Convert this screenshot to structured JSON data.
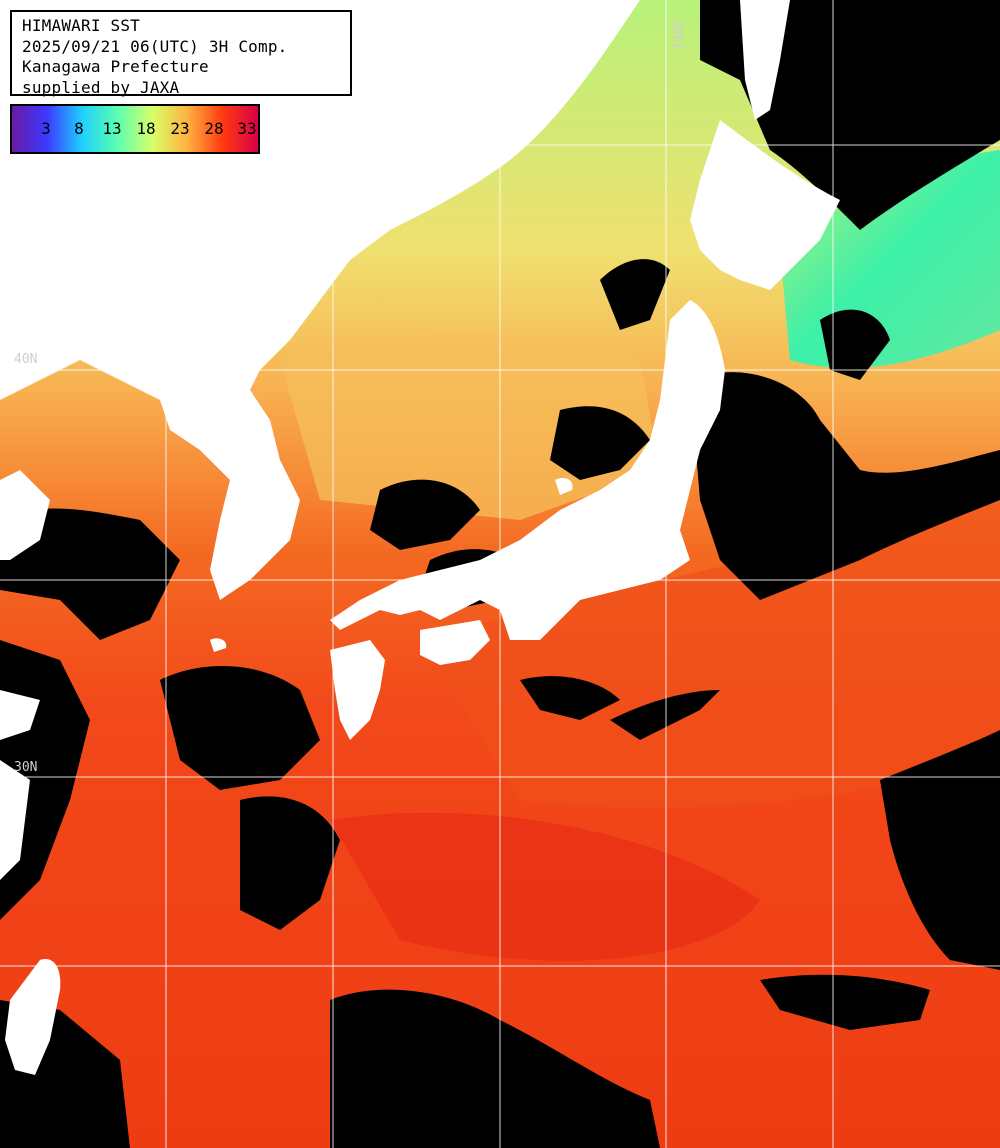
{
  "title_box": {
    "line1": "HIMAWARI SST",
    "line2": "2025/09/21 06(UTC) 3H Comp.",
    "line3": "Kanagawa Prefecture",
    "line4": "supplied by JAXA"
  },
  "colorbar": {
    "ticks": [
      "3",
      "8",
      "13",
      "18",
      "23",
      "28",
      "33"
    ],
    "gradient_colors": [
      "#6a1aa6",
      "#3a3aff",
      "#1fd0ff",
      "#5affb0",
      "#d8ff6a",
      "#ffb040",
      "#ff3a10",
      "#d8004a"
    ]
  },
  "grid": {
    "lon_label": "140E",
    "lat_labels": [
      "40N",
      "30N"
    ],
    "line_color": "#ffffff"
  },
  "map_colors": {
    "land": "#ffffff",
    "no_data_cloud": "#000000",
    "sea_cold": "#3cf0a8",
    "sea_cool": "#b8f27a",
    "sea_mild": "#f6dc6a",
    "sea_warm": "#f8a24a",
    "sea_hot": "#f4531a",
    "sea_hottest": "#e8200e"
  }
}
